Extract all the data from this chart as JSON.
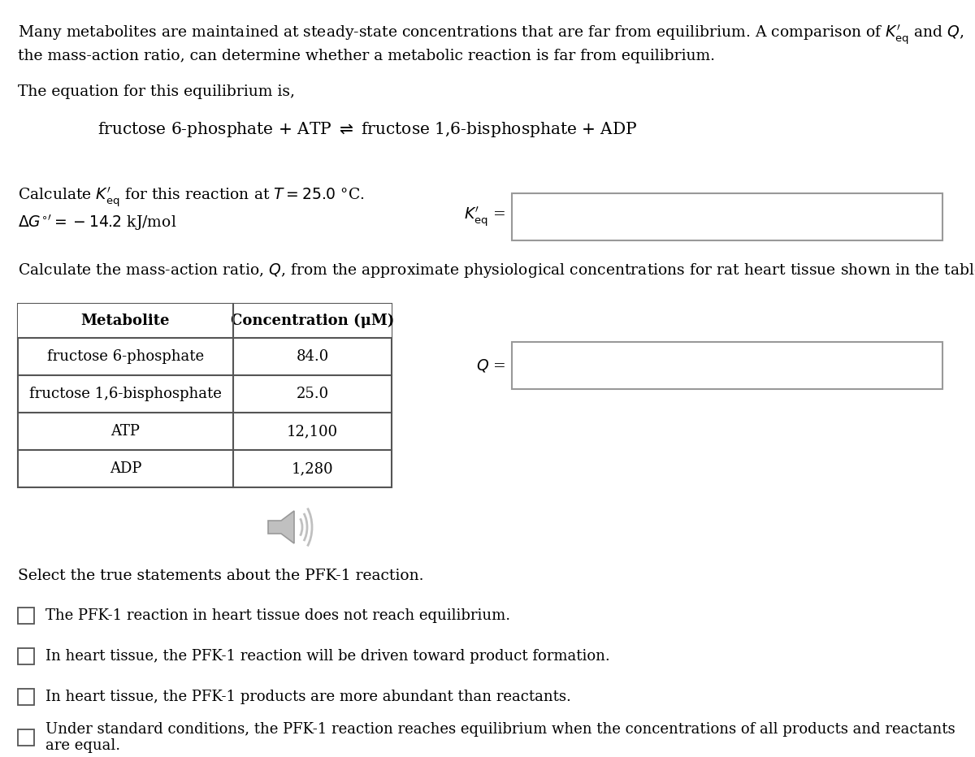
{
  "bg_color": "#ffffff",
  "text_color": "#000000",
  "font_family": "DejaVu Serif",
  "intro_text_line1": "Many metabolites are maintained at steady-state concentrations that are far from equilibrium. A comparison of $K^{\\prime}_{\\mathrm{eq}}$ and $Q$,",
  "intro_text_line2": "the mass-action ratio, can determine whether a metabolic reaction is far from equilibrium.",
  "equation_intro": "The equation for this equilibrium is,",
  "equation": "fructose 6-phosphate + ATP $\\rightleftharpoons$ fructose 1,6-bisphosphate + ADP",
  "calc_keq_line1": "Calculate $K^{\\prime}_{\\mathrm{eq}}$ for this reaction at $T = 25.0$ °C.",
  "calc_keq_line2": "$\\Delta G^{\\circ\\prime} = -14.2$ kJ/mol",
  "keq_label": "$K^{\\prime}_{\\mathrm{eq}}$ =",
  "calc_Q_text": "Calculate the mass-action ratio, $Q$, from the approximate physiological concentrations for rat heart tissue shown in the table.",
  "table_header_metabolite": "Metabolite",
  "table_header_concentration": "Concentration (μM)",
  "table_rows": [
    [
      "fructose 6-phosphate",
      "84.0"
    ],
    [
      "fructose 1,6-bisphosphate",
      "25.0"
    ],
    [
      "ATP",
      "12,100"
    ],
    [
      "ADP",
      "1,280"
    ]
  ],
  "Q_label": "$Q$ =",
  "select_text": "Select the true statements about the PFK-1 reaction.",
  "checkboxes": [
    "The PFK-1 reaction in heart tissue does not reach equilibrium.",
    "In heart tissue, the PFK-1 reaction will be driven toward product formation.",
    "In heart tissue, the PFK-1 products are more abundant than reactants.",
    "Under standard conditions, the PFK-1 reaction reaches equilibrium when the concentrations of all products and reactants\nare equal."
  ],
  "fs_main": 13.5,
  "fs_eq": 14.5,
  "fs_small": 13.0
}
